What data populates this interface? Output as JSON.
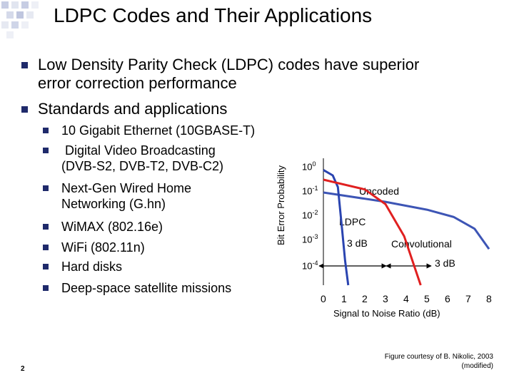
{
  "slide": {
    "title": "LDPC Codes and Their Applications",
    "page_number": "2",
    "credit_line1": "Figure courtesy of B. Nikolic, 2003",
    "credit_line2": "(modified)"
  },
  "bullets": [
    {
      "line1": "Low Density Parity Check (LDPC) codes have superior",
      "line2": "error correction performance"
    },
    {
      "line1": "Standards and applications",
      "line2": ""
    }
  ],
  "sub_bullets": [
    {
      "line1": "10 Gigabit Ethernet (10GBASE-T)",
      "line2": ""
    },
    {
      "line1": " Digital Video Broadcasting",
      "line2": "(DVB-S2, DVB-T2, DVB-C2)"
    },
    {
      "line1": "Next-Gen Wired Home",
      "line2": "Networking (G.hn)"
    },
    {
      "line1": "WiMAX (802.16e)",
      "line2": ""
    },
    {
      "line1": "WiFi (802.11n)",
      "line2": ""
    },
    {
      "line1": "Hard disks",
      "line2": ""
    },
    {
      "line1": "Deep-space satellite missions",
      "line2": ""
    }
  ],
  "chart_data": {
    "type": "line",
    "xlabel": "Signal to Noise Ratio (dB)",
    "ylabel": "Bit Error Probability",
    "x_ticks": [
      "0",
      "1",
      "2",
      "3",
      "4",
      "5",
      "6",
      "7",
      "8"
    ],
    "y_ticks": [
      {
        "base": "10",
        "exp": "0"
      },
      {
        "base": "10",
        "exp": "-1"
      },
      {
        "base": "10",
        "exp": "-2"
      },
      {
        "base": "10",
        "exp": "-3"
      },
      {
        "base": "10",
        "exp": "-4"
      }
    ],
    "xlim": [
      0,
      8
    ],
    "ylim_log10": [
      -5,
      0
    ],
    "series": [
      {
        "name": "Uncoded",
        "color": "#3d55b5",
        "x": [
          0.0,
          3.0,
          5.0,
          6.3,
          7.3,
          8.0
        ],
        "y": [
          0.06,
          0.025,
          0.012,
          0.006,
          0.002,
          0.0003
        ]
      },
      {
        "name": "LDPC",
        "color": "#2a44b0",
        "x": [
          0.0,
          0.45,
          0.7,
          0.9,
          1.05,
          1.2
        ],
        "y": [
          0.5,
          0.3,
          0.1,
          0.002,
          0.0001,
          1e-05
        ]
      },
      {
        "name": "Convolutional",
        "color": "#e02020",
        "x": [
          0.0,
          2.0,
          3.0,
          3.9,
          4.3,
          4.7
        ],
        "y": [
          0.2,
          0.08,
          0.02,
          0.001,
          0.0001,
          1e-05
        ]
      }
    ],
    "annotations": [
      {
        "text": "3 dB",
        "between": [
          "LDPC",
          "Convolutional"
        ],
        "at": "1e-4"
      },
      {
        "text": "3 dB",
        "between": [
          "Convolutional",
          "Uncoded"
        ],
        "at": "1e-4"
      }
    ],
    "colors": {
      "bullet": "#1f2a6b",
      "axes": "#000000"
    }
  }
}
